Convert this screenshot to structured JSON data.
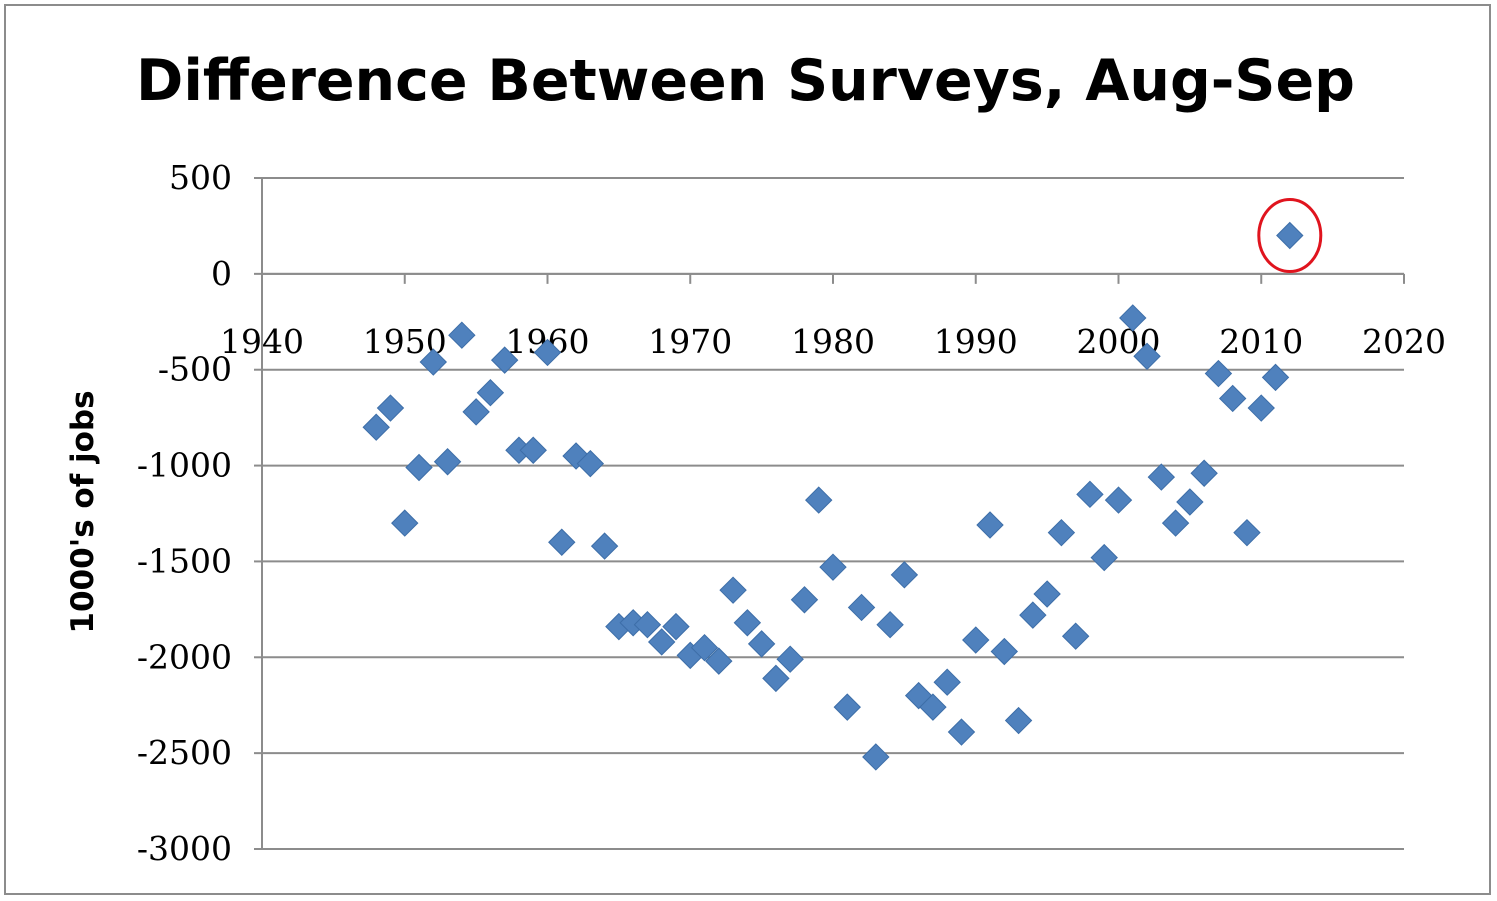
{
  "chart_data": {
    "type": "scatter",
    "title": "Difference Between Surveys, Aug-Sep",
    "xlabel": "",
    "ylabel": "1000's of jobs",
    "xlim": [
      1940,
      2020
    ],
    "ylim": [
      -3000,
      500
    ],
    "x_ticks": [
      1940,
      1950,
      1960,
      1970,
      1980,
      1990,
      2000,
      2010,
      2020
    ],
    "y_ticks": [
      500,
      0,
      -500,
      -1000,
      -1500,
      -2000,
      -2500,
      -3000
    ],
    "grid": "horizontal",
    "legend": "none",
    "marker": "diamond",
    "marker_color": "#4f81bd",
    "highlight_color": "#e0141e",
    "highlighted_point": [
      2012,
      200
    ],
    "points": [
      [
        1948,
        -800
      ],
      [
        1949,
        -700
      ],
      [
        1950,
        -1300
      ],
      [
        1951,
        -1010
      ],
      [
        1952,
        -460
      ],
      [
        1953,
        -980
      ],
      [
        1954,
        -320
      ],
      [
        1955,
        -720
      ],
      [
        1956,
        -620
      ],
      [
        1957,
        -450
      ],
      [
        1958,
        -920
      ],
      [
        1959,
        -920
      ],
      [
        1960,
        -410
      ],
      [
        1961,
        -1400
      ],
      [
        1962,
        -950
      ],
      [
        1963,
        -990
      ],
      [
        1964,
        -1420
      ],
      [
        1965,
        -1840
      ],
      [
        1966,
        -1820
      ],
      [
        1967,
        -1830
      ],
      [
        1968,
        -1920
      ],
      [
        1969,
        -1840
      ],
      [
        1970,
        -1990
      ],
      [
        1971,
        -1950
      ],
      [
        1972,
        -2020
      ],
      [
        1973,
        -1650
      ],
      [
        1974,
        -1820
      ],
      [
        1975,
        -1930
      ],
      [
        1976,
        -2110
      ],
      [
        1977,
        -2010
      ],
      [
        1978,
        -1700
      ],
      [
        1979,
        -1180
      ],
      [
        1980,
        -1530
      ],
      [
        1981,
        -2260
      ],
      [
        1982,
        -1740
      ],
      [
        1983,
        -2520
      ],
      [
        1984,
        -1830
      ],
      [
        1985,
        -1570
      ],
      [
        1986,
        -2200
      ],
      [
        1987,
        -2260
      ],
      [
        1988,
        -2130
      ],
      [
        1989,
        -2390
      ],
      [
        1990,
        -1910
      ],
      [
        1991,
        -1310
      ],
      [
        1992,
        -1970
      ],
      [
        1993,
        -2330
      ],
      [
        1994,
        -1780
      ],
      [
        1995,
        -1670
      ],
      [
        1996,
        -1350
      ],
      [
        1997,
        -1890
      ],
      [
        1998,
        -1150
      ],
      [
        1999,
        -1480
      ],
      [
        2000,
        -1180
      ],
      [
        2001,
        -230
      ],
      [
        2002,
        -430
      ],
      [
        2003,
        -1060
      ],
      [
        2004,
        -1300
      ],
      [
        2005,
        -1190
      ],
      [
        2006,
        -1040
      ],
      [
        2007,
        -520
      ],
      [
        2008,
        -650
      ],
      [
        2009,
        -1350
      ],
      [
        2010,
        -700
      ],
      [
        2011,
        -540
      ],
      [
        2012,
        200
      ]
    ]
  }
}
